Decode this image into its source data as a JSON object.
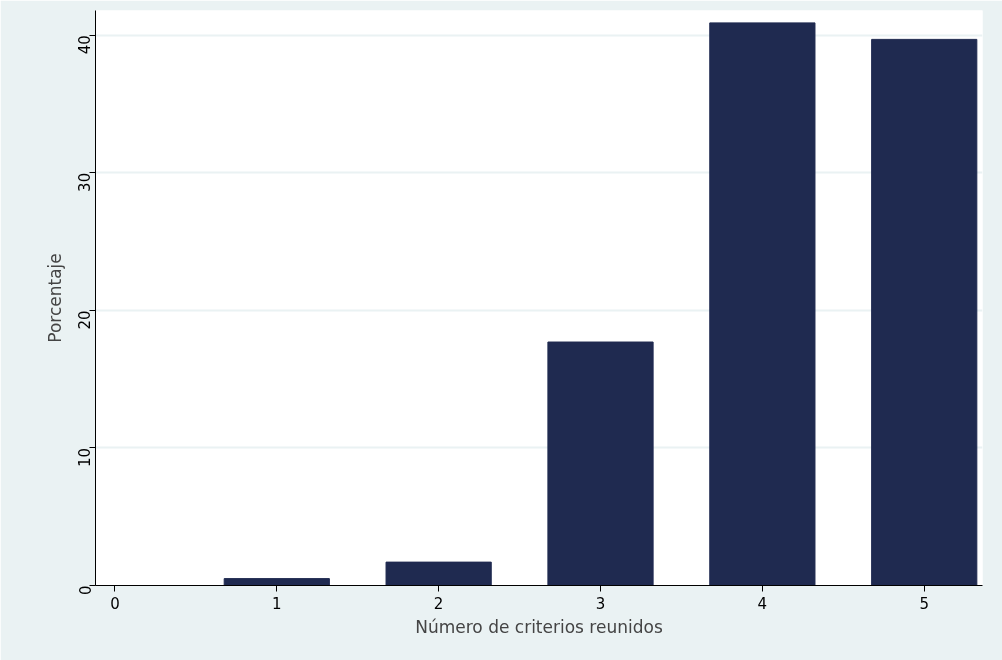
{
  "chart_data": {
    "type": "bar",
    "xlabel": "Número de criterios reunidos",
    "ylabel": "Porcentaje",
    "x": [
      0,
      1,
      2,
      3,
      4,
      5
    ],
    "series": [
      {
        "color": "#1f2a50",
        "values": [
          0,
          0.5,
          1.7,
          17.7,
          40.9,
          39.7
        ]
      }
    ],
    "xlim": [
      -0.12,
      5.36
    ],
    "xticks": [
      0,
      1,
      2,
      3,
      4,
      5
    ],
    "ylim": [
      0,
      41.8
    ],
    "yticks": [
      0,
      10,
      20,
      30,
      40
    ],
    "grid": "y"
  }
}
